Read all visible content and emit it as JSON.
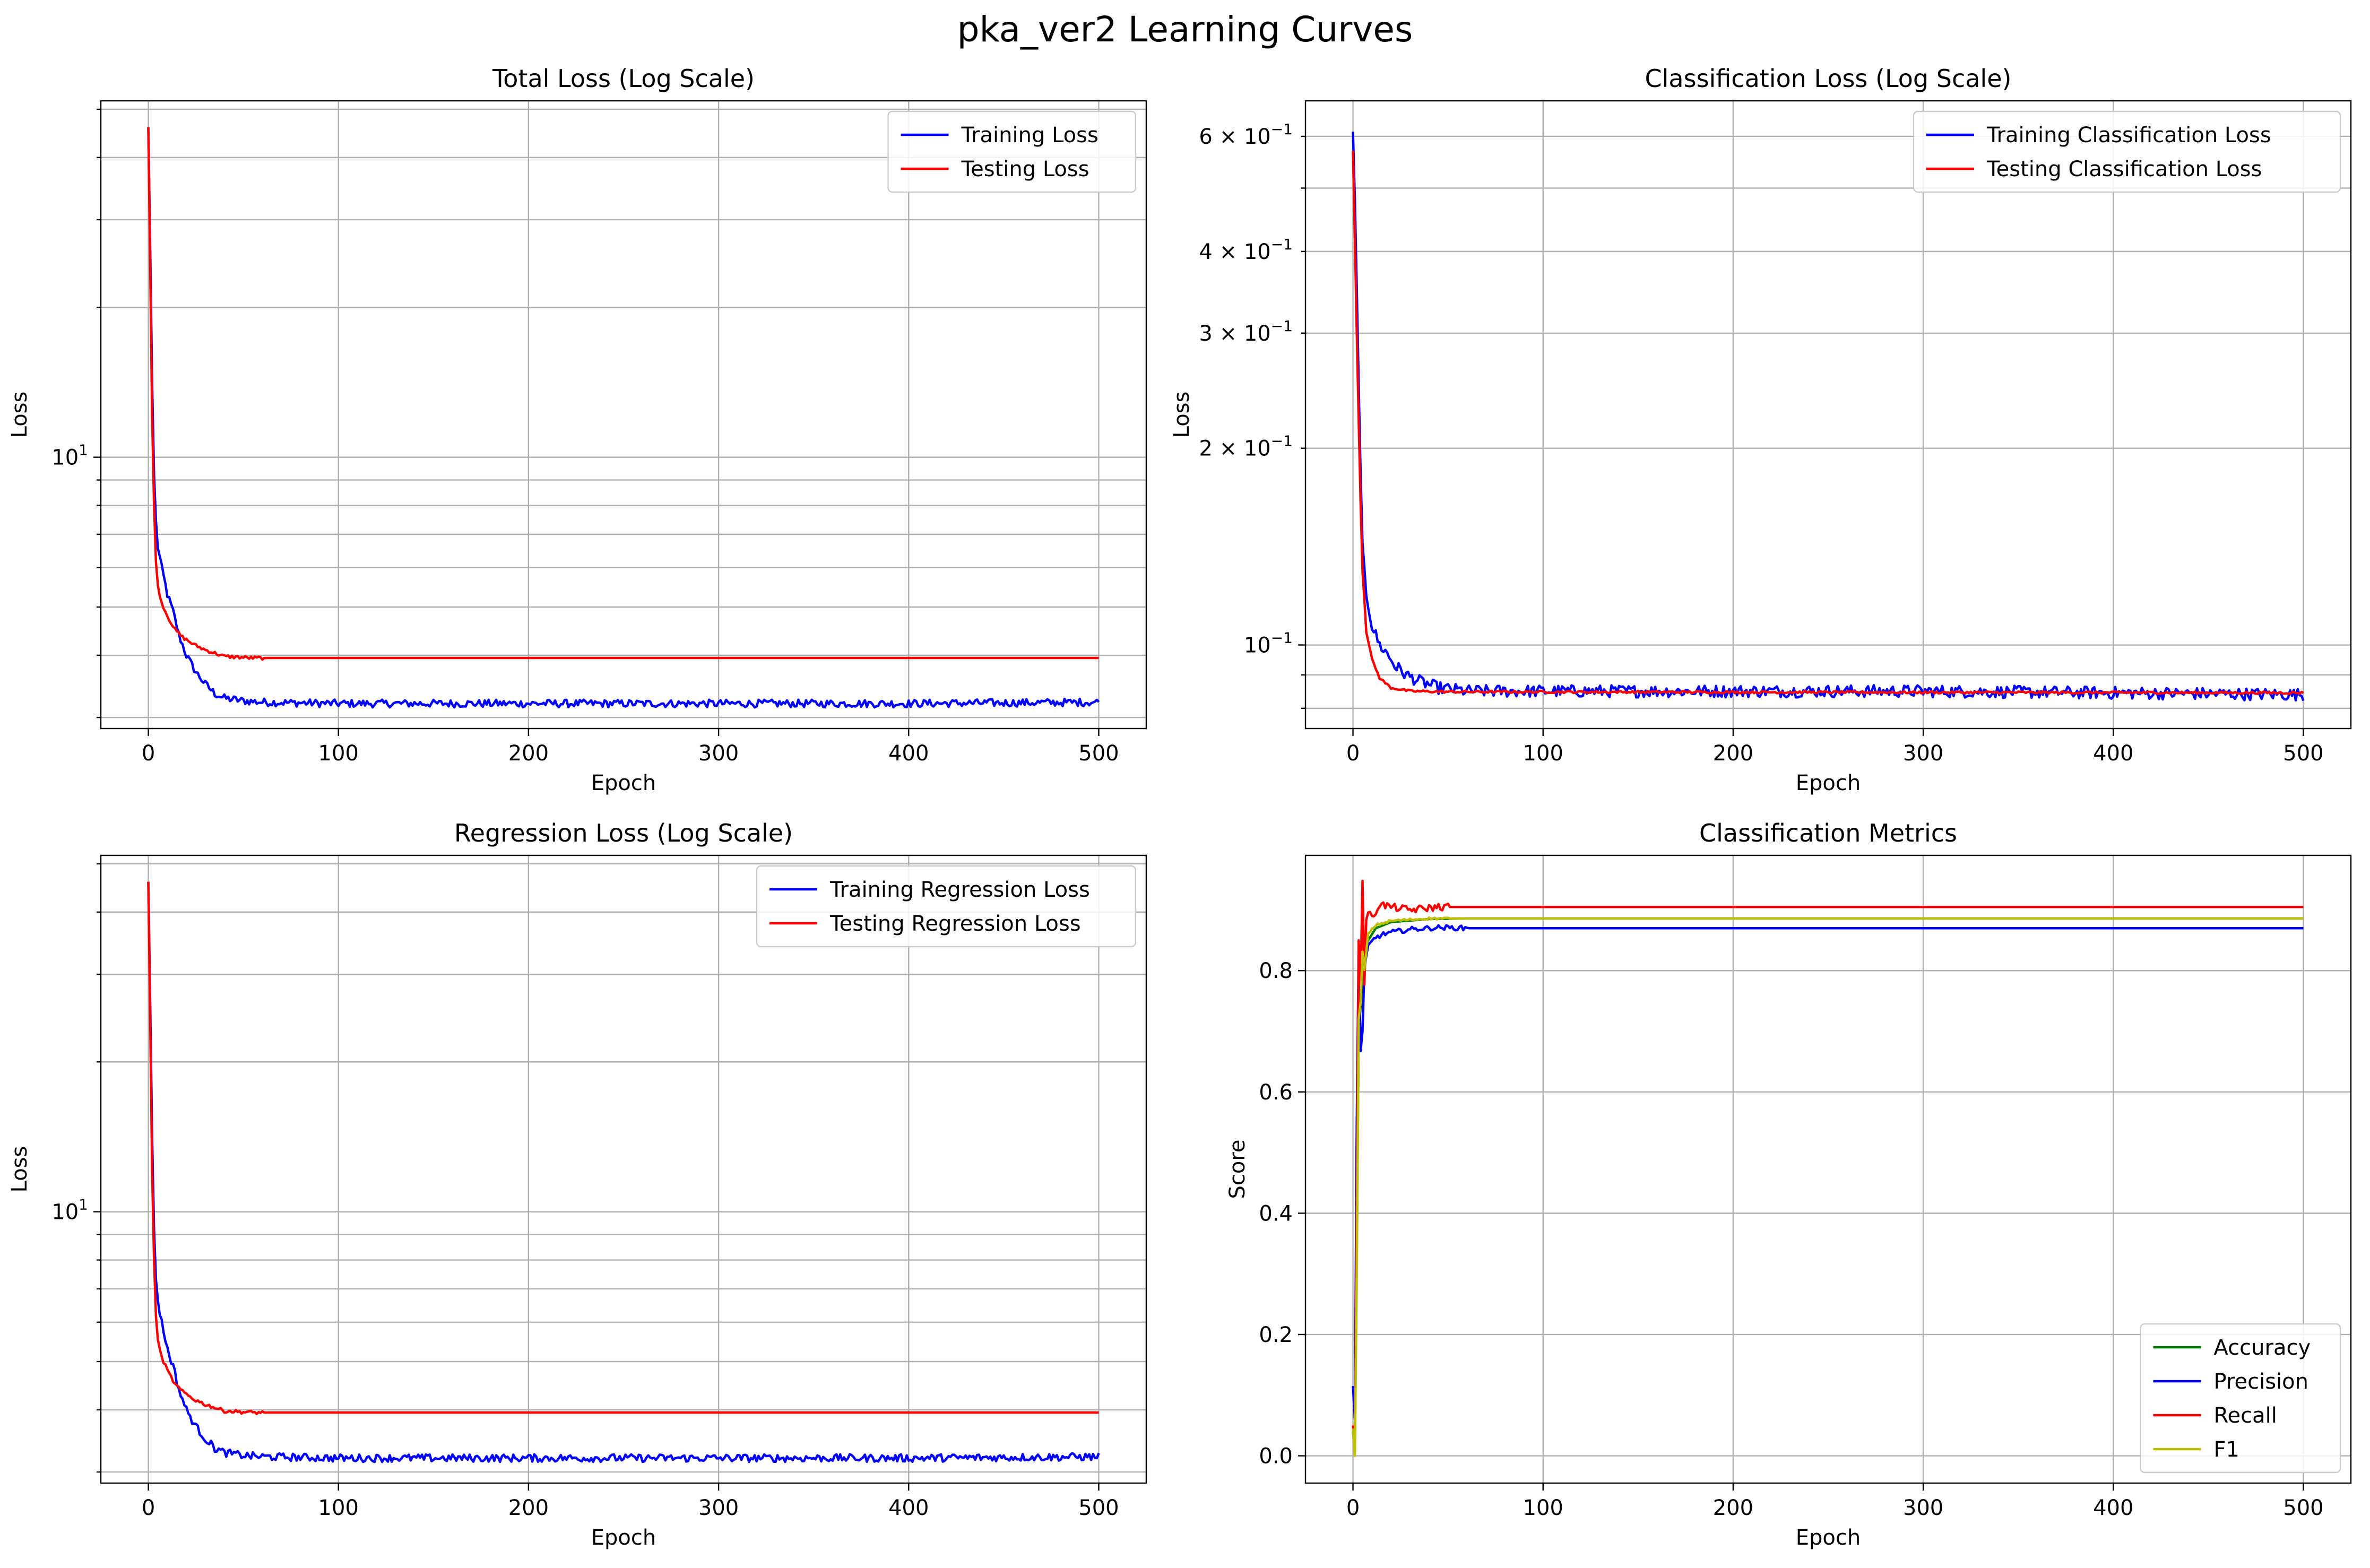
{
  "figure": {
    "suptitle": "pka_ver2 Learning Curves"
  },
  "chart_data": [
    {
      "type": "line",
      "title": "Total Loss (Log Scale)",
      "xlabel": "Epoch",
      "ylabel": "Loss",
      "yscale": "log",
      "xlim": [
        -25,
        525
      ],
      "ylim": [
        2.85,
        52
      ],
      "xticks": [
        0,
        100,
        200,
        300,
        400,
        500
      ],
      "ytick_labels": [
        {
          "value": 10,
          "base": "10",
          "exp": "1"
        }
      ],
      "grid": true,
      "legend_position": "top-right",
      "series": [
        {
          "name": "Training Loss",
          "color": "#0000ff",
          "points": [
            [
              0,
              46
            ],
            [
              1,
              26
            ],
            [
              2,
              14
            ],
            [
              3,
              9.2
            ],
            [
              4,
              7.4
            ],
            [
              5,
              6.6
            ],
            [
              7,
              6.0
            ],
            [
              10,
              5.3
            ],
            [
              13,
              4.9
            ],
            [
              16,
              4.4
            ],
            [
              20,
              4.0
            ],
            [
              25,
              3.7
            ],
            [
              30,
              3.5
            ],
            [
              35,
              3.35
            ],
            [
              40,
              3.28
            ],
            [
              50,
              3.24
            ],
            [
              60,
              3.22
            ],
            [
              100,
              3.2
            ],
            [
              200,
              3.2
            ],
            [
              300,
              3.2
            ],
            [
              400,
              3.2
            ],
            [
              500,
              3.22
            ]
          ],
          "noise": 0.018
        },
        {
          "name": "Testing Loss",
          "color": "#ff0000",
          "points": [
            [
              0,
              46
            ],
            [
              1,
              24
            ],
            [
              2,
              12
            ],
            [
              3,
              8
            ],
            [
              4,
              6.2
            ],
            [
              5,
              5.5
            ],
            [
              7,
              5.1
            ],
            [
              10,
              4.8
            ],
            [
              14,
              4.5
            ],
            [
              18,
              4.35
            ],
            [
              24,
              4.2
            ],
            [
              30,
              4.1
            ],
            [
              40,
              3.98
            ],
            [
              55,
              3.95
            ],
            [
              100,
              3.95
            ],
            [
              500,
              3.95
            ]
          ],
          "noise": 0.008,
          "noise_until": 60
        }
      ]
    },
    {
      "type": "line",
      "title": "Classification Loss (Log Scale)",
      "xlabel": "Epoch",
      "ylabel": "Loss",
      "yscale": "log",
      "xlim": [
        -25,
        525
      ],
      "ylim": [
        0.0745,
        0.68
      ],
      "xticks": [
        0,
        100,
        200,
        300,
        400,
        500
      ],
      "ytick_labels": [
        {
          "value": 0.6,
          "mant": "6",
          "base": "10",
          "exp": "−1"
        },
        {
          "value": 0.4,
          "mant": "4",
          "base": "10",
          "exp": "−1"
        },
        {
          "value": 0.3,
          "mant": "3",
          "base": "10",
          "exp": "−1"
        },
        {
          "value": 0.2,
          "mant": "2",
          "base": "10",
          "exp": "−1"
        },
        {
          "value": 0.1,
          "base": "10",
          "exp": "−1"
        }
      ],
      "grid": true,
      "legend_position": "top-right",
      "series": [
        {
          "name": "Training Classification Loss",
          "color": "#0000ff",
          "points": [
            [
              0,
              0.61
            ],
            [
              1,
              0.48
            ],
            [
              2,
              0.35
            ],
            [
              3,
              0.25
            ],
            [
              4,
              0.18
            ],
            [
              5,
              0.14
            ],
            [
              7,
              0.12
            ],
            [
              10,
              0.107
            ],
            [
              14,
              0.1
            ],
            [
              18,
              0.097
            ],
            [
              22,
              0.093
            ],
            [
              28,
              0.09
            ],
            [
              35,
              0.088
            ],
            [
              45,
              0.086
            ],
            [
              60,
              0.085
            ],
            [
              100,
              0.085
            ],
            [
              300,
              0.085
            ],
            [
              500,
              0.084
            ]
          ],
          "noise": 0.022
        },
        {
          "name": "Testing Classification Loss",
          "color": "#ff0000",
          "points": [
            [
              0,
              0.57
            ],
            [
              1,
              0.42
            ],
            [
              2,
              0.3
            ],
            [
              3,
              0.22
            ],
            [
              4,
              0.165
            ],
            [
              5,
              0.13
            ],
            [
              7,
              0.105
            ],
            [
              10,
              0.095
            ],
            [
              14,
              0.089
            ],
            [
              20,
              0.086
            ],
            [
              30,
              0.085
            ],
            [
              50,
              0.0848
            ],
            [
              500,
              0.0845
            ]
          ],
          "noise": 0.004
        }
      ]
    },
    {
      "type": "line",
      "title": "Regression Loss (Log Scale)",
      "xlabel": "Epoch",
      "ylabel": "Loss",
      "yscale": "log",
      "xlim": [
        -25,
        525
      ],
      "ylim": [
        2.85,
        52
      ],
      "xticks": [
        0,
        100,
        200,
        300,
        400,
        500
      ],
      "ytick_labels": [
        {
          "value": 10,
          "base": "10",
          "exp": "1"
        }
      ],
      "grid": true,
      "legend_position": "top-right",
      "series": [
        {
          "name": "Training Regression Loss",
          "color": "#0000ff",
          "points": [
            [
              0,
              46
            ],
            [
              1,
              26
            ],
            [
              2,
              14
            ],
            [
              3,
              9.2
            ],
            [
              4,
              7.4
            ],
            [
              5,
              6.6
            ],
            [
              7,
              6.0
            ],
            [
              10,
              5.3
            ],
            [
              13,
              4.9
            ],
            [
              16,
              4.4
            ],
            [
              20,
              4.0
            ],
            [
              25,
              3.7
            ],
            [
              30,
              3.5
            ],
            [
              35,
              3.35
            ],
            [
              40,
              3.28
            ],
            [
              50,
              3.24
            ],
            [
              60,
              3.22
            ],
            [
              100,
              3.2
            ],
            [
              200,
              3.2
            ],
            [
              300,
              3.2
            ],
            [
              400,
              3.2
            ],
            [
              500,
              3.22
            ]
          ],
          "noise": 0.018
        },
        {
          "name": "Testing Regression Loss",
          "color": "#ff0000",
          "points": [
            [
              0,
              46
            ],
            [
              1,
              24
            ],
            [
              2,
              12
            ],
            [
              3,
              8
            ],
            [
              4,
              6.2
            ],
            [
              5,
              5.5
            ],
            [
              7,
              5.1
            ],
            [
              10,
              4.8
            ],
            [
              14,
              4.5
            ],
            [
              18,
              4.35
            ],
            [
              24,
              4.2
            ],
            [
              30,
              4.1
            ],
            [
              40,
              3.98
            ],
            [
              55,
              3.95
            ],
            [
              100,
              3.95
            ],
            [
              500,
              3.95
            ]
          ],
          "noise": 0.008,
          "noise_until": 60
        }
      ]
    },
    {
      "type": "line",
      "title": "Classification Metrics",
      "xlabel": "Epoch",
      "ylabel": "Score",
      "yscale": "linear",
      "xlim": [
        -25,
        525
      ],
      "ylim": [
        -0.045,
        0.99
      ],
      "xticks": [
        0,
        100,
        200,
        300,
        400,
        500
      ],
      "yticks": [
        0.0,
        0.2,
        0.4,
        0.6,
        0.8
      ],
      "ytick_labels": [
        {
          "value": 0.0,
          "text": "0.0"
        },
        {
          "value": 0.2,
          "text": "0.2"
        },
        {
          "value": 0.4,
          "text": "0.4"
        },
        {
          "value": 0.6,
          "text": "0.6"
        },
        {
          "value": 0.8,
          "text": "0.8"
        }
      ],
      "grid": true,
      "legend_position": "bottom-right",
      "series": [
        {
          "name": "Accuracy",
          "color": "#008000",
          "points": [
            [
              0,
              0.04
            ],
            [
              1,
              0.01
            ],
            [
              2,
              0.33
            ],
            [
              3,
              0.7
            ],
            [
              4,
              0.74
            ],
            [
              5,
              0.8
            ],
            [
              6,
              0.83
            ],
            [
              8,
              0.85
            ],
            [
              12,
              0.87
            ],
            [
              20,
              0.88
            ],
            [
              40,
              0.885
            ],
            [
              60,
              0.886
            ],
            [
              500,
              0.886
            ]
          ],
          "noise": 0
        },
        {
          "name": "Precision",
          "color": "#0000ff",
          "points": [
            [
              0,
              0.115
            ],
            [
              1,
              0.06
            ],
            [
              2,
              0.55
            ],
            [
              3,
              0.84
            ],
            [
              4,
              0.67
            ],
            [
              5,
              0.7
            ],
            [
              6,
              0.8
            ],
            [
              8,
              0.84
            ],
            [
              12,
              0.855
            ],
            [
              18,
              0.862
            ],
            [
              30,
              0.868
            ],
            [
              45,
              0.871
            ],
            [
              60,
              0.87
            ],
            [
              500,
              0.87
            ]
          ],
          "noise": 0.004,
          "noise_until": 60
        },
        {
          "name": "Recall",
          "color": "#ff0000",
          "points": [
            [
              0,
              0.05
            ],
            [
              1,
              0.01
            ],
            [
              2,
              0.4
            ],
            [
              3,
              0.85
            ],
            [
              4,
              0.78
            ],
            [
              5,
              0.95
            ],
            [
              6,
              0.78
            ],
            [
              7,
              0.88
            ],
            [
              8,
              0.9
            ],
            [
              10,
              0.885
            ],
            [
              14,
              0.91
            ],
            [
              20,
              0.905
            ],
            [
              30,
              0.9
            ],
            [
              45,
              0.905
            ],
            [
              500,
              0.905
            ]
          ],
          "noise": 0.006,
          "noise_until": 50
        },
        {
          "name": "F1",
          "color": "#bfbf00",
          "points": [
            [
              0,
              0.045
            ],
            [
              1,
              0.0
            ],
            [
              2,
              0.3
            ],
            [
              3,
              0.72
            ],
            [
              4,
              0.75
            ],
            [
              5,
              0.83
            ],
            [
              6,
              0.8
            ],
            [
              8,
              0.86
            ],
            [
              12,
              0.875
            ],
            [
              20,
              0.882
            ],
            [
              40,
              0.886
            ],
            [
              500,
              0.886
            ]
          ],
          "noise": 0.002,
          "noise_until": 50
        }
      ]
    }
  ]
}
